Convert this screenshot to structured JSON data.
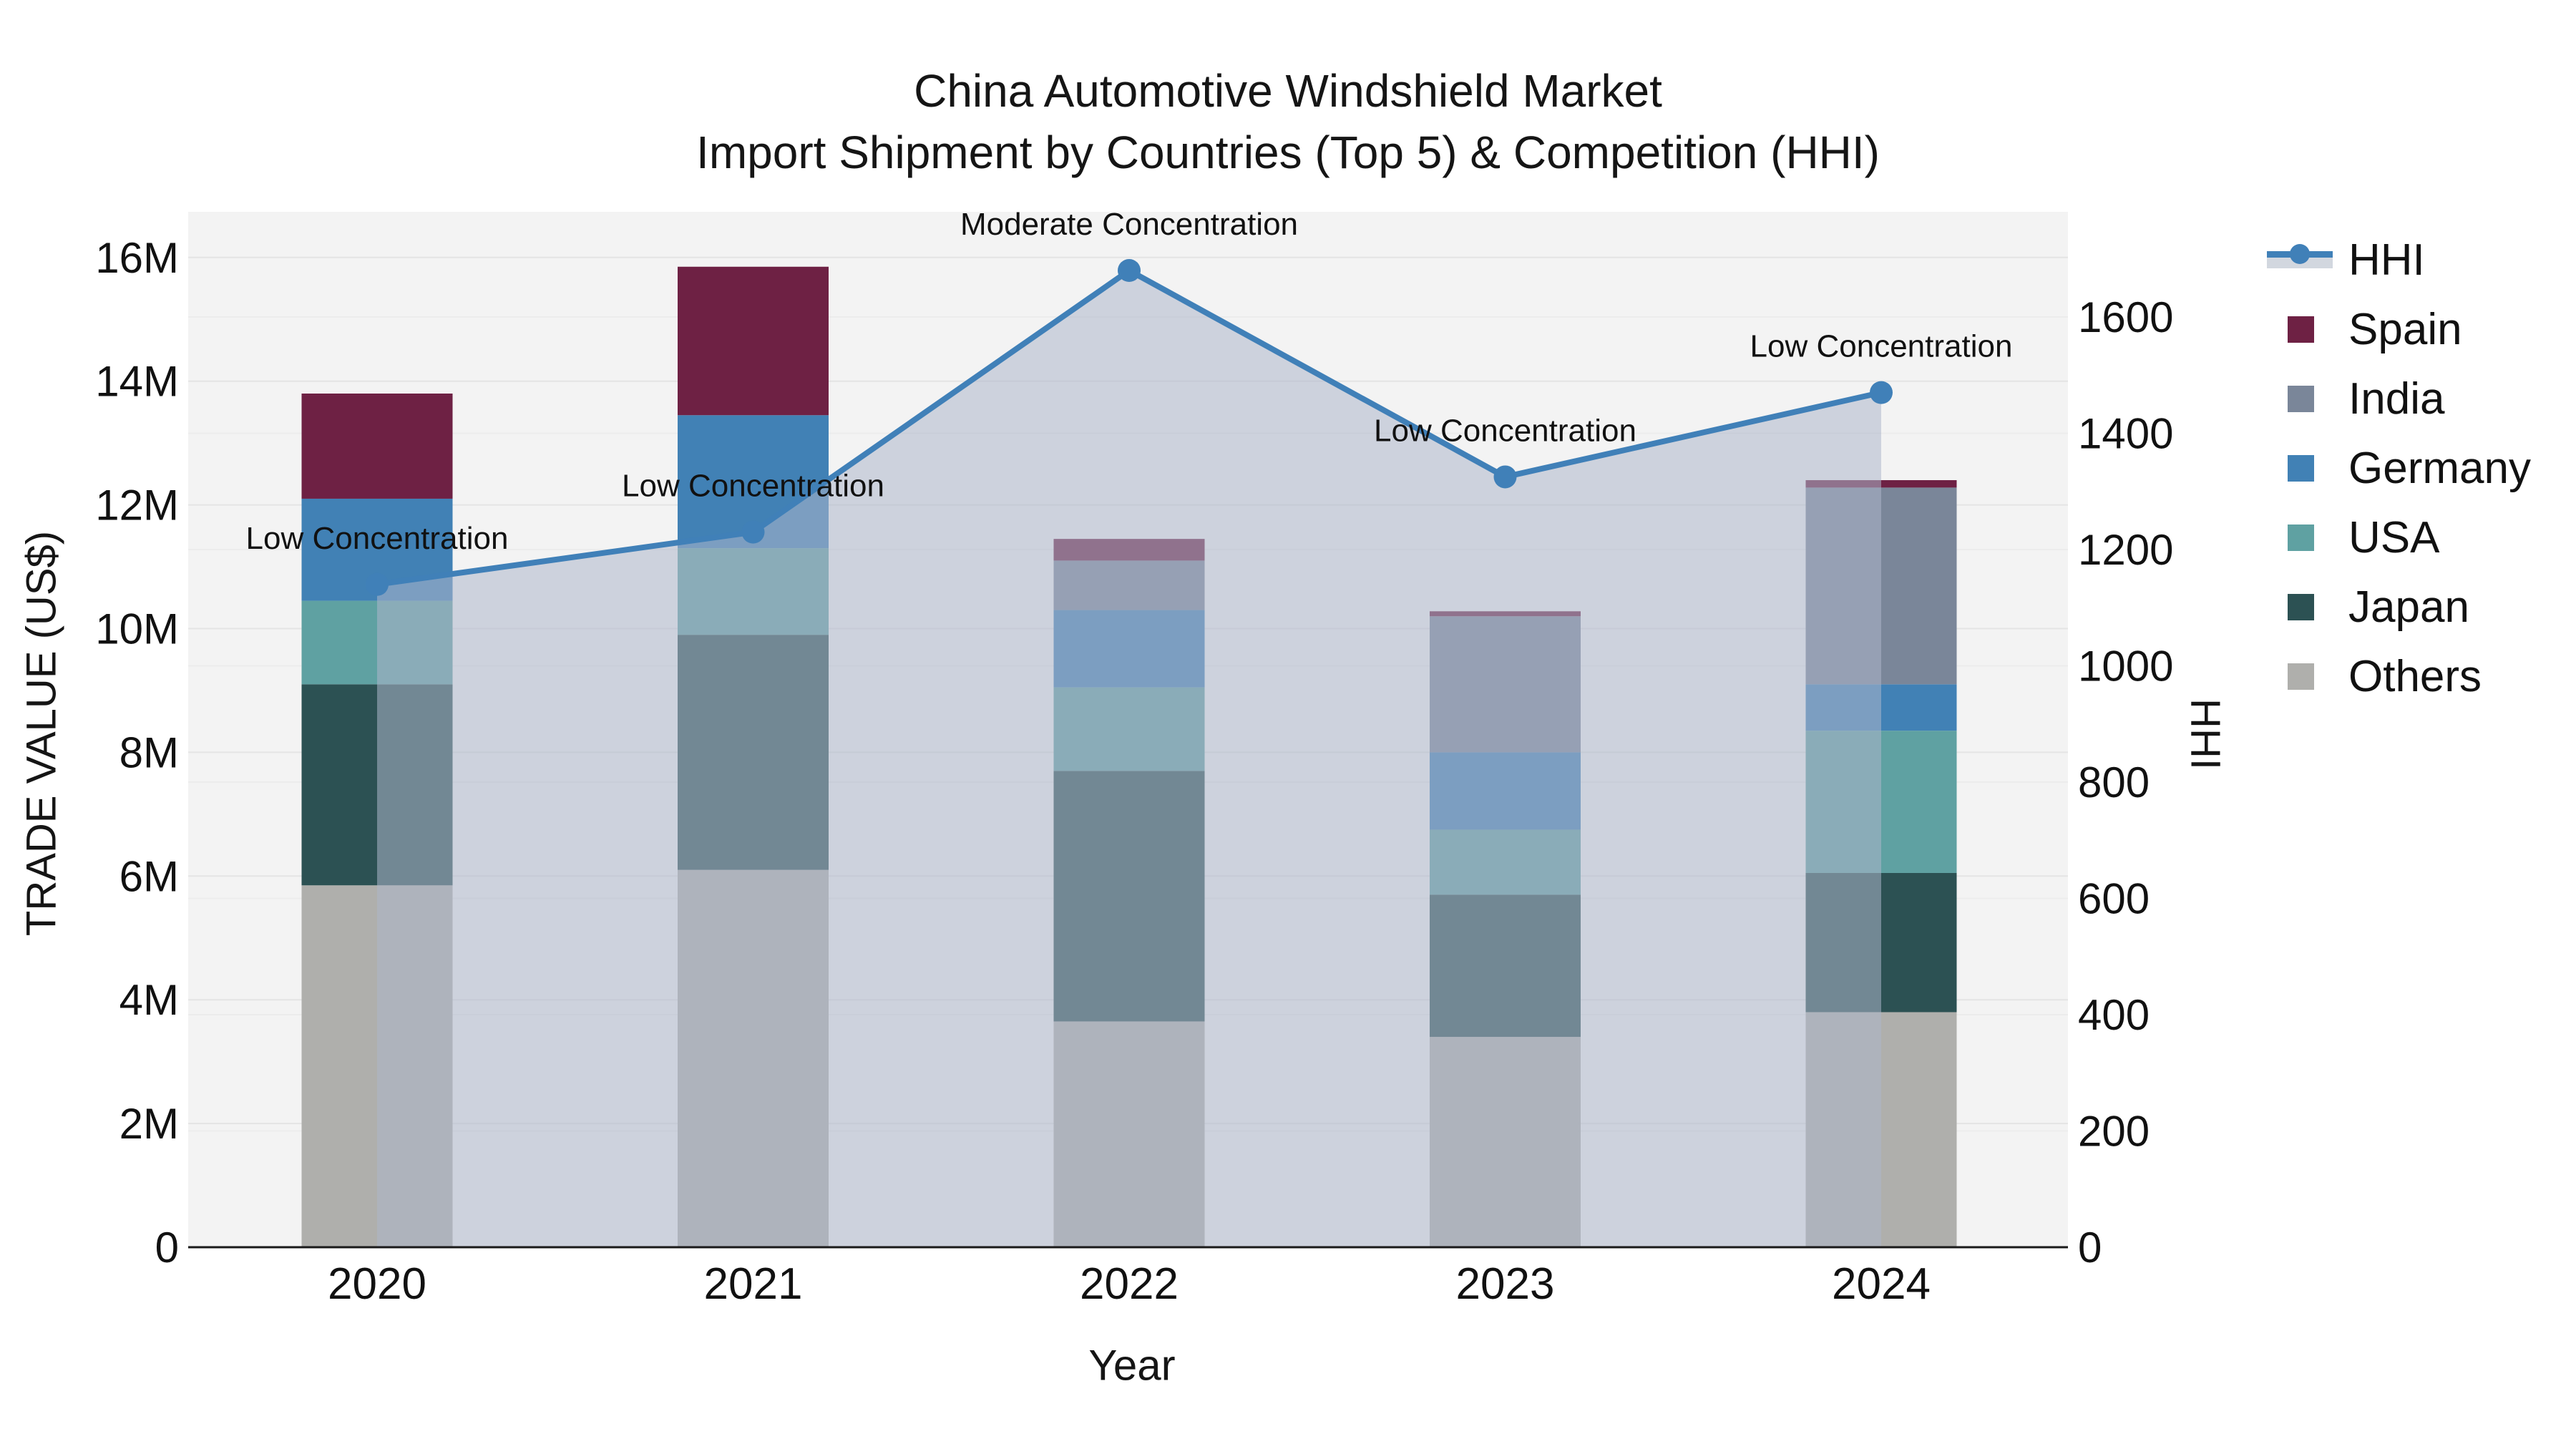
{
  "title": {
    "line1": "China Automotive Windshield Market",
    "line2": "Import Shipment by Countries (Top 5) & Competition (HHI)"
  },
  "axes": {
    "x": {
      "title": "Year",
      "tick_labels": [
        "2020",
        "2021",
        "2022",
        "2023",
        "2024"
      ]
    },
    "y": {
      "title": "TRADE VALUE (US$)",
      "tick_values": [
        0,
        2,
        4,
        6,
        8,
        10,
        12,
        14,
        16
      ],
      "tick_labels": [
        "0",
        "2M",
        "4M",
        "6M",
        "8M",
        "10M",
        "12M",
        "14M",
        "16M"
      ]
    },
    "y2": {
      "title": "HHI",
      "tick_values": [
        0,
        200,
        400,
        600,
        800,
        1000,
        1200,
        1400,
        1600
      ],
      "tick_labels": [
        "0",
        "200",
        "400",
        "600",
        "800",
        "1000",
        "1200",
        "1400",
        "1600"
      ]
    }
  },
  "legend": {
    "items": [
      {
        "label": "HHI",
        "type": "line",
        "color": "#4080B8"
      },
      {
        "label": "Spain",
        "type": "square",
        "color": "#6E2144"
      },
      {
        "label": "India",
        "type": "square",
        "color": "#7A8699"
      },
      {
        "label": "Germany",
        "type": "square",
        "color": "#4181B5"
      },
      {
        "label": "USA",
        "type": "square",
        "color": "#5FA1A2"
      },
      {
        "label": "Japan",
        "type": "square",
        "color": "#2C5153"
      },
      {
        "label": "Others",
        "type": "square",
        "color": "#AFAFAC"
      }
    ]
  },
  "chart_data": {
    "type": "bar",
    "subtype": "stacked-bars-with-line-area",
    "categories": [
      "2020",
      "2021",
      "2022",
      "2023",
      "2024"
    ],
    "bar_value_unit": "million US$",
    "series": [
      {
        "name": "Others",
        "color": "#AFAFAC",
        "values": [
          5.85,
          6.1,
          3.65,
          3.4,
          3.8
        ]
      },
      {
        "name": "Japan",
        "color": "#2C5153",
        "values": [
          3.25,
          3.8,
          4.05,
          2.3,
          2.25
        ]
      },
      {
        "name": "USA",
        "color": "#5FA1A2",
        "values": [
          1.35,
          1.4,
          1.35,
          1.05,
          2.3
        ]
      },
      {
        "name": "Germany",
        "color": "#4181B5",
        "values": [
          1.65,
          2.15,
          1.25,
          1.25,
          0.75
        ]
      },
      {
        "name": "India",
        "color": "#7A8699",
        "values": [
          0.0,
          0.0,
          0.8,
          2.2,
          3.18
        ]
      },
      {
        "name": "Spain",
        "color": "#6E2144",
        "values": [
          1.7,
          2.4,
          0.35,
          0.08,
          0.12
        ]
      }
    ],
    "line_series": {
      "name": "HHI",
      "color": "#4080B8",
      "area_fill": "rgba(173,183,202,0.55)",
      "values": [
        1140,
        1230,
        1680,
        1325,
        1470
      ]
    },
    "annotations": [
      {
        "category": "2020",
        "text": "Low Concentration"
      },
      {
        "category": "2021",
        "text": "Low Concentration"
      },
      {
        "category": "2022",
        "text": "Moderate Concentration"
      },
      {
        "category": "2023",
        "text": "Low Concentration"
      },
      {
        "category": "2024",
        "text": "Low Concentration"
      }
    ],
    "ylabel": "TRADE VALUE (US$)",
    "y2label": "HHI",
    "xlabel": "Year",
    "ylim_millions": [
      0,
      16.75
    ],
    "y2lim": [
      0,
      1785
    ],
    "grid": true,
    "legend_position": "outside-top-right",
    "plot_bg": "#f3f3f3",
    "grid_color_primary": "#e4e4e4",
    "grid_color_secondary": "#ececec",
    "axis_line_color": "#1a1a1a",
    "text_color": "#111111"
  }
}
